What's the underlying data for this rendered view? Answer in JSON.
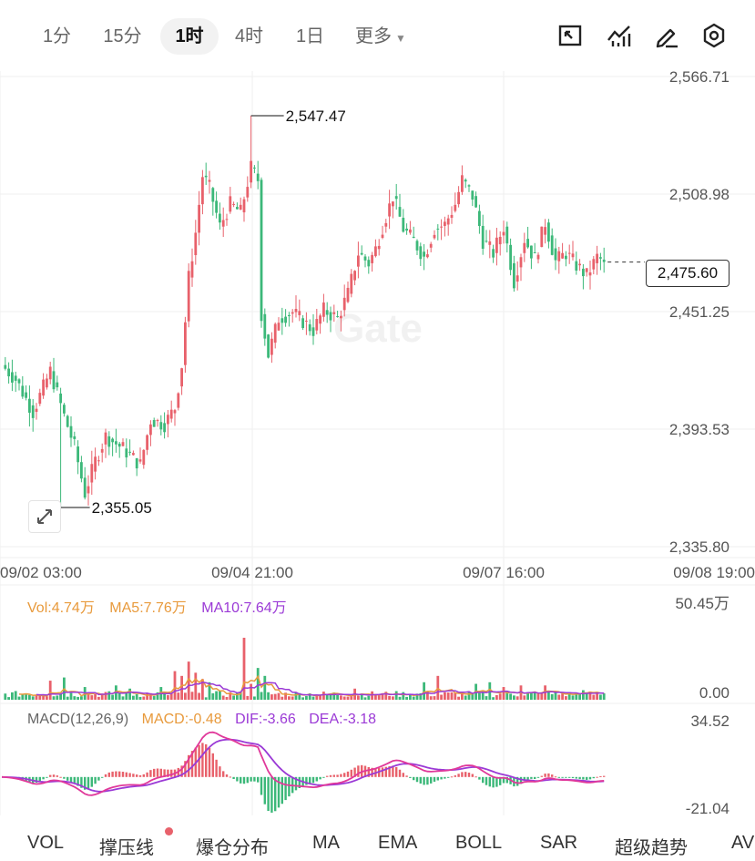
{
  "toolbar": {
    "tabs": [
      "1分",
      "15分",
      "1时",
      "4时",
      "1日",
      "更多"
    ],
    "active_tab": "1时",
    "tools": [
      {
        "icon": "fullscreen-icon"
      },
      {
        "icon": "indicator-icon"
      },
      {
        "icon": "draw-pen-icon"
      },
      {
        "icon": "settings-gear-icon"
      }
    ]
  },
  "watermark": "Gate",
  "price_tag": "2,475.60",
  "high_label": "2,547.47",
  "low_label": "2,355.05",
  "colors": {
    "up": "#e8616b",
    "down": "#3cb879",
    "ma5": "#e89a3c",
    "ma10": "#9b3ad6",
    "grid": "#efefef"
  },
  "chart_data": {
    "type": "candlestick",
    "y_axis_ticks": [
      "2,566.71",
      "2,508.98",
      "2,451.25",
      "2,393.53",
      "2,335.80"
    ],
    "ylim": [
      2335.8,
      2566.71
    ],
    "x_axis_ticks": [
      "09/02 03:00",
      "09/04 21:00",
      "09/07 16:00",
      "09/08 19:00"
    ],
    "last_price": 2475.6,
    "high": 2547.47,
    "low": 2355.05,
    "segments": [
      [
        0,
        2425
      ],
      [
        4,
        2418
      ],
      [
        9,
        2402
      ],
      [
        14,
        2422
      ],
      [
        18,
        2400
      ],
      [
        21,
        2385
      ],
      [
        24,
        2362
      ],
      [
        27,
        2378
      ],
      [
        30,
        2390
      ],
      [
        35,
        2384
      ],
      [
        40,
        2376
      ],
      [
        43,
        2398
      ],
      [
        47,
        2396
      ],
      [
        50,
        2404
      ],
      [
        52,
        2425
      ],
      [
        54,
        2468
      ],
      [
        56,
        2490
      ],
      [
        58,
        2518
      ],
      [
        60,
        2512
      ],
      [
        63,
        2493
      ],
      [
        66,
        2504
      ],
      [
        69,
        2500
      ],
      [
        72,
        2522
      ],
      [
        74,
        2516
      ],
      [
        75,
        2450
      ],
      [
        77,
        2430
      ],
      [
        80,
        2448
      ],
      [
        84,
        2451
      ],
      [
        88,
        2445
      ],
      [
        90,
        2442
      ],
      [
        93,
        2452
      ],
      [
        97,
        2448
      ],
      [
        100,
        2460
      ],
      [
        103,
        2480
      ],
      [
        106,
        2475
      ],
      [
        108,
        2482
      ],
      [
        110,
        2493
      ],
      [
        113,
        2508
      ],
      [
        116,
        2492
      ],
      [
        119,
        2486
      ],
      [
        122,
        2478
      ],
      [
        125,
        2492
      ],
      [
        128,
        2494
      ],
      [
        131,
        2504
      ],
      [
        133,
        2516
      ],
      [
        136,
        2508
      ],
      [
        139,
        2486
      ],
      [
        142,
        2480
      ],
      [
        145,
        2493
      ],
      [
        148,
        2466
      ],
      [
        151,
        2487
      ],
      [
        154,
        2477
      ],
      [
        157,
        2495
      ],
      [
        160,
        2476
      ],
      [
        163,
        2480
      ],
      [
        166,
        2474
      ],
      [
        169,
        2469
      ],
      [
        172,
        2478
      ],
      [
        174,
        2475.6
      ]
    ],
    "volume": {
      "legend": {
        "vol": "Vol:4.74万",
        "ma5": "MA5:7.76万",
        "ma10": "MA10:7.64万"
      },
      "ticks": [
        "50.45万",
        "0.00"
      ],
      "ylim": [
        0,
        50.45
      ],
      "spikes": [
        [
          14,
          12
        ],
        [
          18,
          14
        ],
        [
          24,
          8
        ],
        [
          33,
          9
        ],
        [
          37,
          7
        ],
        [
          46,
          8
        ],
        [
          50,
          18
        ],
        [
          52,
          15
        ],
        [
          54,
          24
        ],
        [
          56,
          17
        ],
        [
          58,
          13
        ],
        [
          60,
          11
        ],
        [
          70,
          39
        ],
        [
          72,
          10
        ],
        [
          74,
          20
        ],
        [
          76,
          15
        ],
        [
          102,
          7
        ],
        [
          122,
          11
        ],
        [
          126,
          15
        ],
        [
          137,
          10
        ],
        [
          141,
          11
        ],
        [
          145,
          8
        ],
        [
          150,
          9
        ],
        [
          157,
          9
        ],
        [
          168,
          6
        ]
      ]
    },
    "macd": {
      "legend": {
        "params": "MACD(12,26,9)",
        "macd": "MACD:-0.48",
        "dif": "DIF:-3.66",
        "dea": "DEA:-3.18"
      },
      "ticks": [
        "34.52",
        "-21.04"
      ],
      "ylim": [
        -21.04,
        34.52
      ]
    }
  },
  "bottom_nav": [
    "VOL",
    "撑压线",
    "爆仓分布",
    "MA",
    "EMA",
    "BOLL",
    "SAR",
    "超级趋势",
    "AV"
  ]
}
